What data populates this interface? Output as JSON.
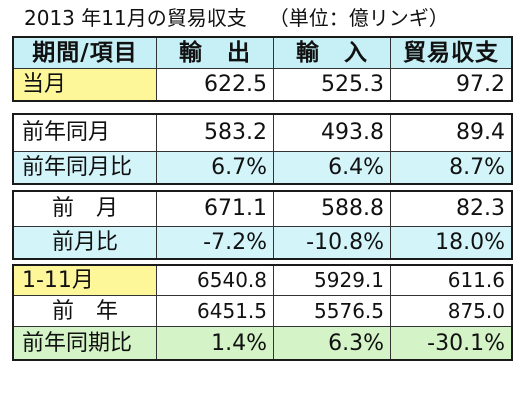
{
  "title": {
    "main": "2013 年11月の貿易収支",
    "unit": "（単位：億リンギ）"
  },
  "colors": {
    "header": "#c6f0f6",
    "yellow": "#fdf79a",
    "cyan": "#d3f5fa",
    "green": "#d4f3c7",
    "border": "#1a1a1a"
  },
  "table": {
    "headers": [
      "期間/項目",
      "輸　出",
      "輸　入",
      "貿易収支"
    ],
    "current_month": {
      "label": "当月",
      "exports": "622.5",
      "imports": "525.3",
      "balance": "97.2"
    },
    "prev_year_month": {
      "label": "前年同月",
      "exports": "583.2",
      "imports": "493.8",
      "balance": "89.4"
    },
    "prev_year_month_ratio": {
      "label": "前年同月比",
      "exports": "6.7%",
      "imports": "6.4%",
      "balance": "8.7%"
    },
    "prev_month": {
      "label": "前　月",
      "exports": "671.1",
      "imports": "588.8",
      "balance": "82.3"
    },
    "prev_month_ratio": {
      "label": "前月比",
      "exports": "-7.2%",
      "imports": "-10.8%",
      "balance": "18.0%"
    },
    "ytd": {
      "label": "1-11月",
      "exports": "6540.8",
      "imports": "5929.1",
      "balance": "611.6"
    },
    "prev_year": {
      "label": "前　年",
      "exports": "6451.5",
      "imports": "5576.5",
      "balance": "875.0"
    },
    "prev_year_period_ratio": {
      "label": "前年同期比",
      "exports": "1.4%",
      "imports": "6.3%",
      "balance": "-30.1%"
    }
  }
}
